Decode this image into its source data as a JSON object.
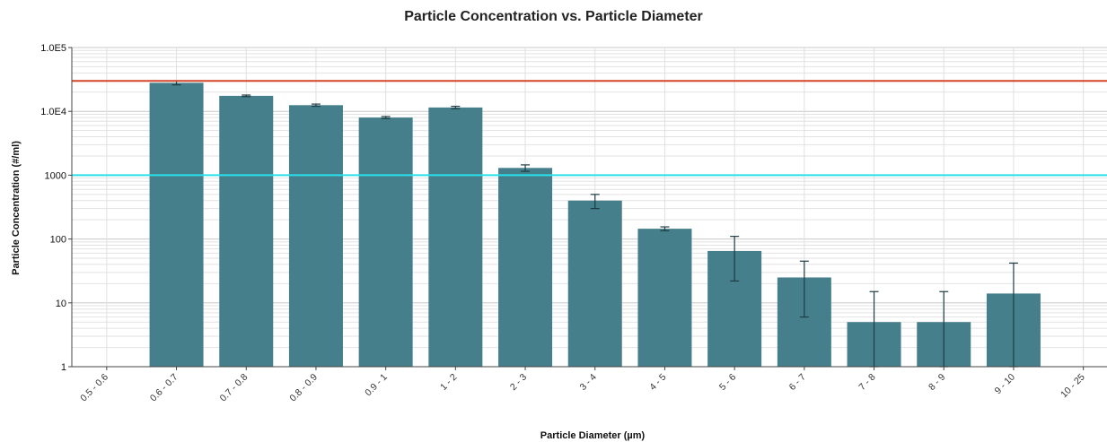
{
  "chart_data": {
    "type": "bar",
    "title": "Particle Concentration vs. Particle Diameter",
    "xlabel": "Particle Diameter (µm)",
    "ylabel": "Particle Concentration (#/ml)",
    "y_scale": "log",
    "ylim": [
      1,
      100000
    ],
    "y_ticks": [
      {
        "value": 1,
        "label": "1"
      },
      {
        "value": 10,
        "label": "10"
      },
      {
        "value": 100,
        "label": "100"
      },
      {
        "value": 1000,
        "label": "1000"
      },
      {
        "value": 10000,
        "label": "1.0E4"
      },
      {
        "value": 100000,
        "label": "1.0E5"
      }
    ],
    "grid": true,
    "categories": [
      "0.5 - 0.6",
      "0.6 - 0.7",
      "0.7 - 0.8",
      "0.8 - 0.9",
      "0.9 - 1",
      "1 - 2",
      "2 - 3",
      "3 - 4",
      "4 - 5",
      "5 - 6",
      "6 - 7",
      "7 - 8",
      "8 - 9",
      "9 - 10",
      "10 - 25"
    ],
    "values": [
      null,
      28000,
      17500,
      12500,
      8000,
      11500,
      1300,
      400,
      145,
      65,
      25,
      5,
      5,
      14,
      null
    ],
    "error_low": [
      null,
      26000,
      17000,
      12000,
      7700,
      11000,
      1150,
      300,
      135,
      22,
      6,
      1,
      1,
      1,
      null
    ],
    "error_high": [
      null,
      30000,
      18000,
      13000,
      8300,
      12000,
      1450,
      500,
      155,
      110,
      45,
      15,
      15,
      42,
      null
    ],
    "bar_color": "#467f8c",
    "reference_lines": [
      {
        "value": 30000,
        "color": "#d0472c"
      },
      {
        "value": 1000,
        "color": "#29e0ea"
      }
    ]
  }
}
